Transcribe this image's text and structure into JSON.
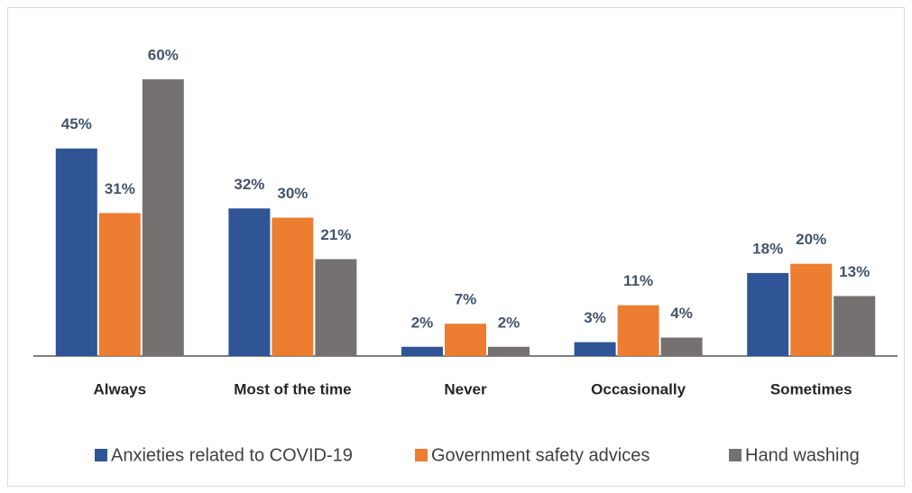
{
  "chart_data": {
    "type": "bar",
    "categories": [
      "Always",
      "Most of the time",
      "Never",
      "Occasionally",
      "Sometimes"
    ],
    "series": [
      {
        "name": "Anxieties related to COVID-19",
        "color": "#2f5597",
        "values": [
          45,
          32,
          2,
          3,
          18
        ],
        "value_labels": [
          "45%",
          "32%",
          "2%",
          "3%",
          "18%"
        ]
      },
      {
        "name": "Government safety advices",
        "color": "#ed7d31",
        "values": [
          31,
          30,
          7,
          11,
          20
        ],
        "value_labels": [
          "31%",
          "30%",
          "7%",
          "11%",
          "20%"
        ]
      },
      {
        "name": "Hand washing",
        "color": "#767171",
        "values": [
          60,
          21,
          2,
          4,
          13
        ],
        "value_labels": [
          "60%",
          "21%",
          "2%",
          "4%",
          "13%"
        ]
      }
    ],
    "legend": "bottom"
  }
}
